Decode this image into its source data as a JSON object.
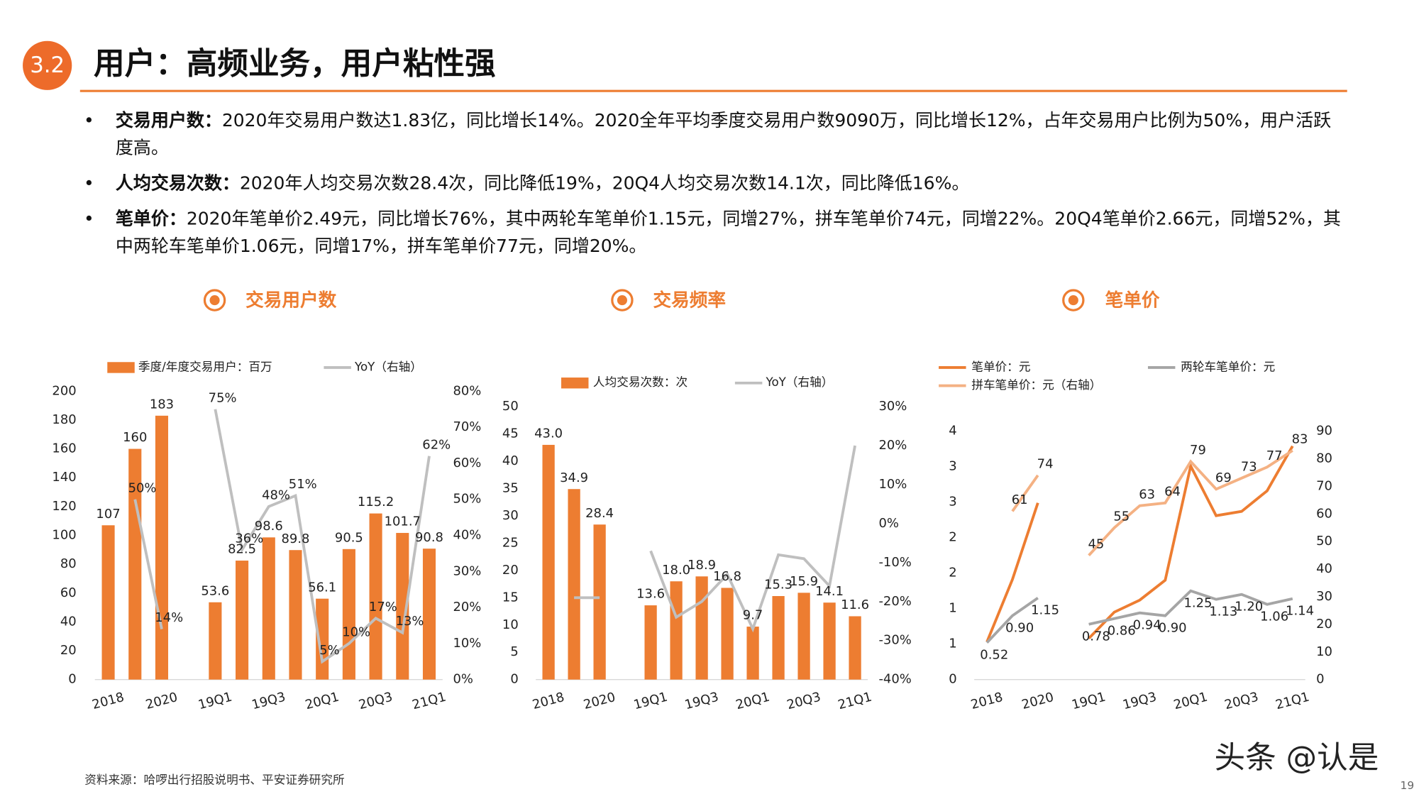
{
  "header": {
    "badge": "3.2",
    "title": "用户：高频业务，用户粘性强"
  },
  "bullets": [
    {
      "lead": "交易用户数：",
      "text": "2020年交易用户数达1.83亿，同比增长14%。2020全年平均季度交易用户数9090万，同比增长12%，占年交易用户比例为50%，用户活跃度高。"
    },
    {
      "lead": "人均交易次数：",
      "text": "2020年人均交易次数28.4次，同比降低19%，20Q4人均交易次数14.1次，同比降低16%。"
    },
    {
      "lead": "笔单价：",
      "text": "2020年笔单价2.49元，同比增长76%，其中两轮车笔单价1.15元，同增27%，拼车笔单价74元，同增22%。20Q4笔单价2.66元，同增52%，其中两轮车笔单价1.06元，同增17%，拼车笔单价77元，同增20%。"
    }
  ],
  "chart_data": [
    {
      "type": "bar",
      "title": "交易用户数",
      "categories": [
        "2018",
        null,
        "2020",
        null,
        "19Q1",
        null,
        "19Q3",
        null,
        "20Q1",
        null,
        "20Q3",
        null,
        "21Q1"
      ],
      "series": [
        {
          "name": "季度/年度交易用户：百万",
          "color": "#ED7D31",
          "values": [
            107,
            160,
            183,
            null,
            53.6,
            82.5,
            98.6,
            89.8,
            56.1,
            90.5,
            115.2,
            101.7,
            90.8
          ],
          "data_labels": true
        },
        {
          "name": "YoY（右轴）",
          "color": "#BFBFBF",
          "type": "line",
          "axis": "y2",
          "values": [
            null,
            50,
            14,
            null,
            75,
            36,
            48,
            51,
            5,
            10,
            17,
            13,
            62
          ],
          "value_labels": [
            null,
            "50%",
            "14%",
            null,
            "75%",
            "36%",
            "48%",
            "51%",
            "5%",
            "10%",
            "17%",
            "13%",
            "62%"
          ],
          "data_labels": true
        }
      ],
      "ylim": [
        0,
        200
      ],
      "yticks": [
        0,
        20,
        40,
        60,
        80,
        100,
        120,
        140,
        160,
        180,
        200
      ],
      "y2lim": [
        0,
        80
      ],
      "y2ticks": [
        {
          "value": 0,
          "label": "0%"
        },
        {
          "value": 10,
          "label": "10%"
        },
        {
          "value": 20,
          "label": "20%"
        },
        {
          "value": 30,
          "label": "30%"
        },
        {
          "value": 40,
          "label": "40%"
        },
        {
          "value": 50,
          "label": "50%"
        },
        {
          "value": 60,
          "label": "60%"
        },
        {
          "value": 70,
          "label": "70%"
        },
        {
          "value": 80,
          "label": "80%"
        }
      ]
    },
    {
      "type": "bar",
      "title": "交易频率",
      "categories": [
        "2018",
        null,
        "2020",
        null,
        "19Q1",
        null,
        "19Q3",
        null,
        "20Q1",
        null,
        "20Q3",
        null,
        "21Q1"
      ],
      "series": [
        {
          "name": "人均交易次数：次",
          "color": "#ED7D31",
          "values": [
            43.0,
            34.9,
            28.4,
            null,
            13.6,
            18.0,
            18.9,
            16.8,
            9.7,
            15.3,
            15.9,
            14.1,
            11.6
          ],
          "value_labels": [
            "43.0",
            "34.9",
            "28.4",
            null,
            "13.6",
            "18.0",
            "18.9",
            "16.8",
            "9.7",
            "15.3",
            "15.9",
            "14.1",
            "11.6"
          ],
          "data_labels": true
        },
        {
          "name": "YoY（右轴）",
          "color": "#BFBFBF",
          "type": "line",
          "axis": "y2",
          "values": [
            null,
            -19,
            -19,
            null,
            -7,
            -24,
            -20,
            -13,
            -27,
            -8,
            -9,
            -16,
            20
          ]
        }
      ],
      "ylim": [
        0,
        50
      ],
      "yticks": [
        0,
        5,
        10,
        15,
        20,
        25,
        30,
        35,
        40,
        45,
        50
      ],
      "y2lim": [
        -40,
        30
      ],
      "y2ticks": [
        {
          "value": -40,
          "label": "-40%"
        },
        {
          "value": -30,
          "label": "-30%"
        },
        {
          "value": -20,
          "label": "-20%"
        },
        {
          "value": -10,
          "label": "-10%"
        },
        {
          "value": 0,
          "label": "0%"
        },
        {
          "value": 10,
          "label": "10%"
        },
        {
          "value": 20,
          "label": "20%"
        },
        {
          "value": 30,
          "label": "30%"
        }
      ]
    },
    {
      "type": "line",
      "title": "笔单价",
      "categories": [
        "2018",
        null,
        "2020",
        null,
        "19Q1",
        null,
        "19Q3",
        null,
        "20Q1",
        null,
        "20Q3",
        null,
        "21Q1"
      ],
      "series": [
        {
          "name": "笔单价：元",
          "color": "#ED7D31",
          "values": [
            0.53,
            1.41,
            2.49,
            null,
            0.58,
            0.95,
            1.12,
            1.4,
            3.01,
            2.31,
            2.37,
            2.66,
            3.29
          ]
        },
        {
          "name": "两轮车笔单价：元",
          "color": "#A5A5A5",
          "values": [
            0.52,
            0.9,
            1.15,
            null,
            0.78,
            0.86,
            0.94,
            0.9,
            1.25,
            1.13,
            1.2,
            1.06,
            1.14
          ],
          "value_labels": [
            "0.52",
            "0.90",
            "1.15",
            null,
            "0.78",
            "0.86",
            "0.94",
            "0.90",
            "1.25",
            "1.13",
            "1.20",
            "1.06",
            "1.14"
          ],
          "data_labels": true
        },
        {
          "name": "拼车笔单价：元（右轴）",
          "color": "#F4B183",
          "axis": "y2",
          "values": [
            null,
            61,
            74,
            null,
            45,
            55,
            63,
            64,
            79,
            69,
            73,
            77,
            83
          ],
          "data_labels": true
        }
      ],
      "ylim": [
        0,
        3.5
      ],
      "yticks": [
        0,
        {
          "value": 0.5,
          "label": "1"
        },
        1,
        {
          "value": 1.5,
          "label": "2"
        },
        2,
        {
          "value": 2.5,
          "label": "3"
        },
        3,
        {
          "value": 3.5,
          "label": "4"
        }
      ],
      "y2lim": [
        0,
        90
      ],
      "y2ticks": [
        0,
        10,
        20,
        30,
        40,
        50,
        60,
        70,
        80,
        90
      ]
    }
  ],
  "source": "资料来源：哈啰出行招股说明书、平安证券研究所",
  "watermark": "头条 @认是",
  "page_number": "19"
}
